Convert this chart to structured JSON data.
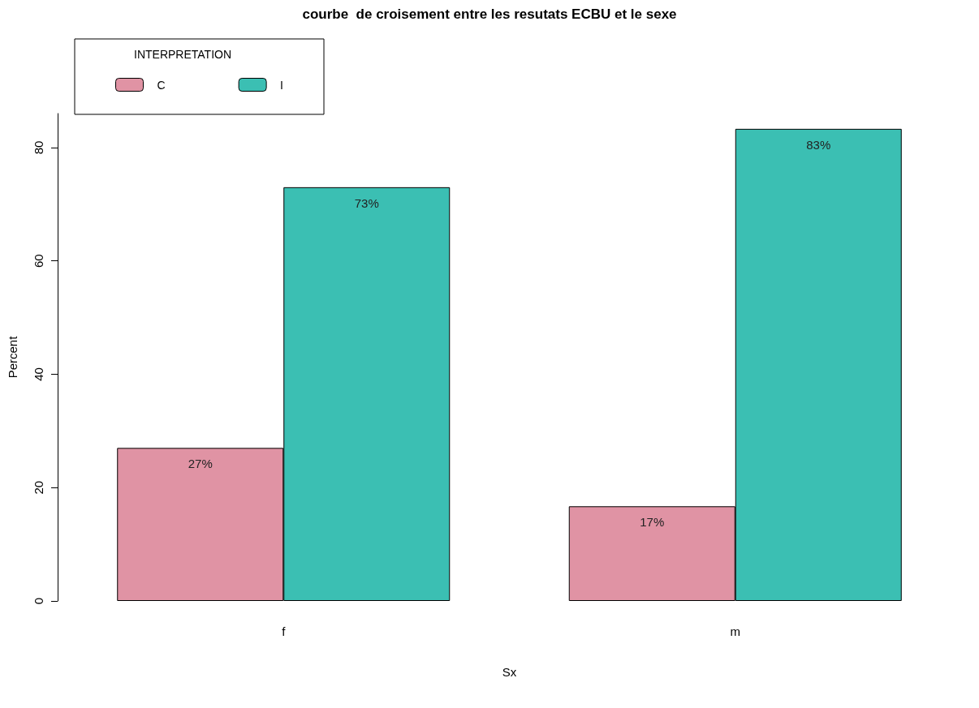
{
  "chart_data": {
    "type": "bar",
    "title": "courbe  de croisement entre les resutats ECBU et le sexe",
    "xlabel": "Sx",
    "ylabel": "Percent",
    "legend_title": "INTERPRETATION",
    "categories": [
      "f",
      "m"
    ],
    "series": [
      {
        "name": "C",
        "color": "#e093a4",
        "values": [
          27,
          16.7
        ],
        "value_labels": [
          "27%",
          "17%"
        ]
      },
      {
        "name": "I",
        "color": "#3bbfb3",
        "values": [
          73,
          83.3
        ],
        "value_labels": [
          "73%",
          "83%"
        ]
      }
    ],
    "ylim": [
      0,
      86
    ],
    "yticks": [
      0,
      20,
      40,
      60,
      80
    ],
    "grid": false,
    "legend": "top left"
  }
}
